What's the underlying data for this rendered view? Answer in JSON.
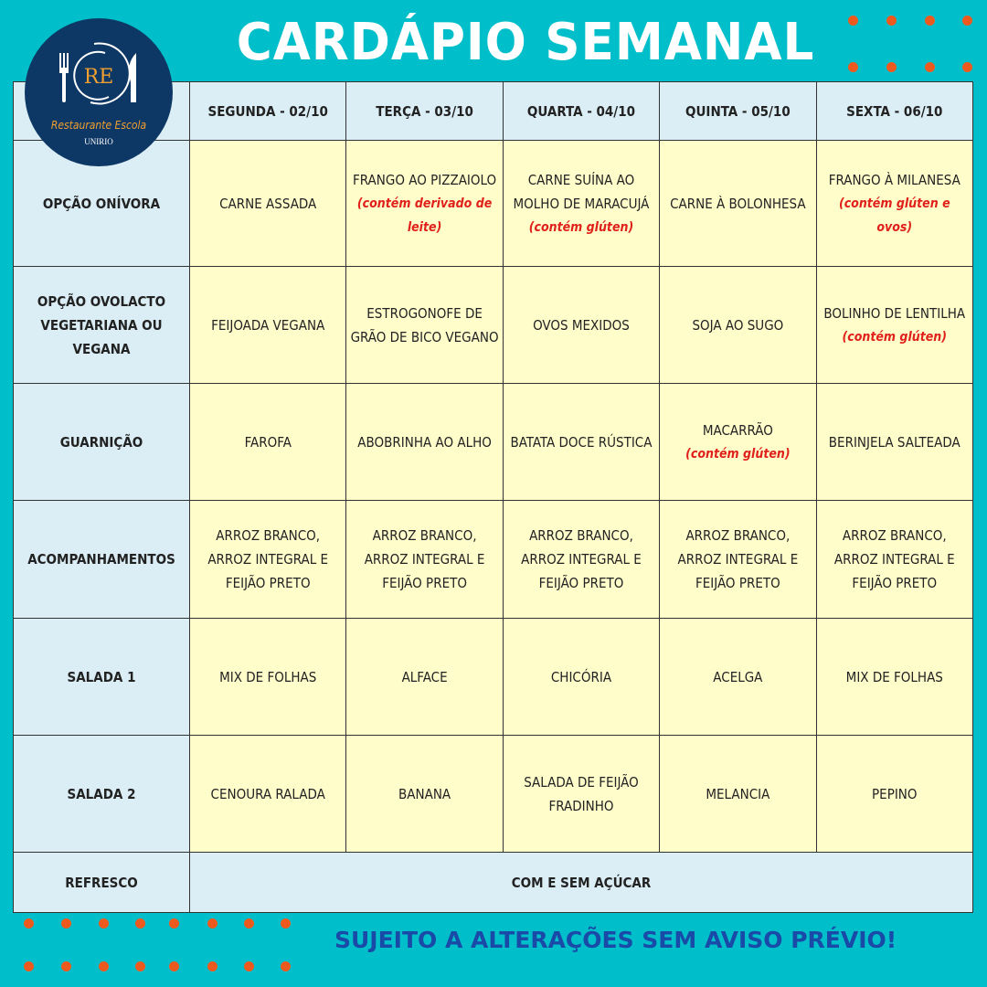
{
  "title": "CARDÁPIO SEMANAL",
  "logo": {
    "initials": "RE",
    "name": "Restaurante Escola",
    "org": "UNIRIO"
  },
  "colors": {
    "background": "#00bfca",
    "header_cells": "#dbeef5",
    "menu_cells": "#fffdca",
    "notes": "#e0201a",
    "footer": "#1a4aa8",
    "dots": "#ee5a1e",
    "logo": "#0d3764"
  },
  "days": [
    "SEGUNDA - 02/10",
    "TERÇA - 03/10",
    "QUARTA - 04/10",
    "QUINTA - 05/10",
    "SEXTA - 06/10"
  ],
  "rows": [
    {
      "label": "OPÇÃO ONÍVORA",
      "cells": [
        {
          "text": "CARNE ASSADA",
          "note": ""
        },
        {
          "text": "FRANGO AO PIZZAIOLO",
          "note": "(contém derivado de leite)"
        },
        {
          "text": "CARNE SUÍNA AO MOLHO DE MARACUJÁ",
          "note": "(contém glúten)"
        },
        {
          "text": "CARNE À BOLONHESA",
          "note": ""
        },
        {
          "text": "FRANGO À MILANESA",
          "note": "(contém glúten e ovos)"
        }
      ]
    },
    {
      "label": "OPÇÃO OVOLACTO VEGETARIANA OU VEGANA",
      "cells": [
        {
          "text": "FEIJOADA VEGANA",
          "note": ""
        },
        {
          "text": "ESTROGONOFE DE GRÃO DE BICO VEGANO",
          "note": ""
        },
        {
          "text": "OVOS MEXIDOS",
          "note": ""
        },
        {
          "text": "SOJA AO SUGO",
          "note": ""
        },
        {
          "text": "BOLINHO DE LENTILHA",
          "note": "(contém glúten)"
        }
      ]
    },
    {
      "label": "GUARNIÇÃO",
      "cells": [
        {
          "text": "FAROFA",
          "note": ""
        },
        {
          "text": "ABOBRINHA AO ALHO",
          "note": ""
        },
        {
          "text": "BATATA DOCE RÚSTICA",
          "note": ""
        },
        {
          "text": "MACARRÃO",
          "note": "(contém glúten)"
        },
        {
          "text": "BERINJELA SALTEADA",
          "note": ""
        }
      ]
    },
    {
      "label": "ACOMPANHAMENTOS",
      "cells": [
        {
          "text": "ARROZ BRANCO, ARROZ INTEGRAL E FEIJÃO PRETO",
          "note": ""
        },
        {
          "text": "ARROZ BRANCO, ARROZ INTEGRAL E FEIJÃO PRETO",
          "note": ""
        },
        {
          "text": "ARROZ BRANCO, ARROZ INTEGRAL E FEIJÃO PRETO",
          "note": ""
        },
        {
          "text": "ARROZ BRANCO, ARROZ INTEGRAL E FEIJÃO PRETO",
          "note": ""
        },
        {
          "text": "ARROZ BRANCO, ARROZ INTEGRAL E FEIJÃO PRETO",
          "note": ""
        }
      ]
    },
    {
      "label": "SALADA 1",
      "cells": [
        {
          "text": "MIX DE FOLHAS",
          "note": ""
        },
        {
          "text": "ALFACE",
          "note": ""
        },
        {
          "text": "CHICÓRIA",
          "note": ""
        },
        {
          "text": "ACELGA",
          "note": ""
        },
        {
          "text": "MIX DE FOLHAS",
          "note": ""
        }
      ]
    },
    {
      "label": "SALADA 2",
      "cells": [
        {
          "text": "CENOURA RALADA",
          "note": ""
        },
        {
          "text": "BANANA",
          "note": ""
        },
        {
          "text": "SALADA DE FEIJÃO FRADINHO",
          "note": ""
        },
        {
          "text": "MELANCIA",
          "note": ""
        },
        {
          "text": "PEPINO",
          "note": ""
        }
      ]
    }
  ],
  "refresco": {
    "label": "REFRESCO",
    "value": "COM E SEM AÇÚCAR"
  },
  "footer": "SUJEITO A ALTERAÇÕES SEM AVISO PRÉVIO!"
}
